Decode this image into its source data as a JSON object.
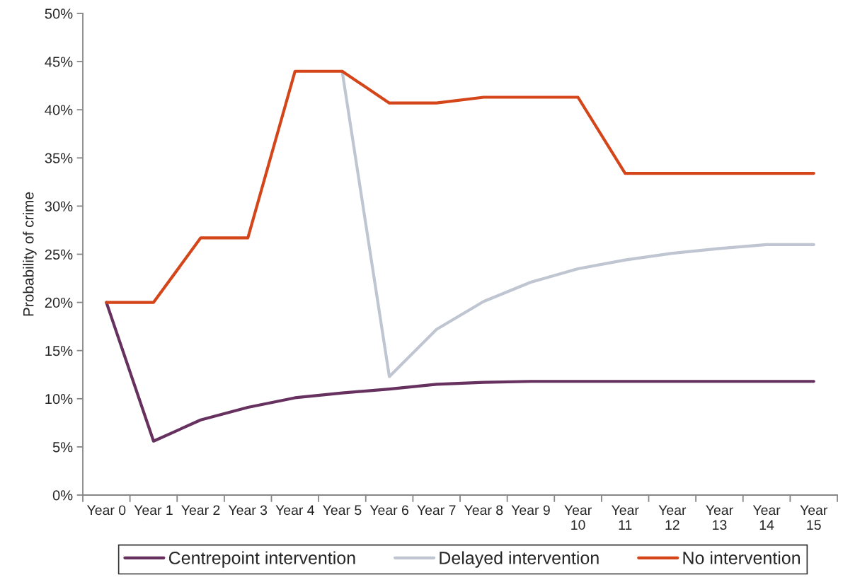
{
  "chart_data": {
    "type": "line",
    "ylabel": "Probability of crime",
    "categories": [
      "Year 0",
      "Year 1",
      "Year 2",
      "Year 3",
      "Year 4",
      "Year 5",
      "Year 6",
      "Year 7",
      "Year 8",
      "Year 9",
      "Year 10",
      "Year 11",
      "Year 12",
      "Year 13",
      "Year 14",
      "Year 15"
    ],
    "series": [
      {
        "name": "Centrepoint intervention",
        "color": "#66305f",
        "values": [
          20,
          5.6,
          7.8,
          9.1,
          10.1,
          10.6,
          11.0,
          11.5,
          11.7,
          11.8,
          11.8,
          11.8,
          11.8,
          11.8,
          11.8,
          11.8
        ]
      },
      {
        "name": "Delayed intervention",
        "color": "#bfc5d1",
        "values": [
          null,
          null,
          null,
          null,
          null,
          44,
          12.3,
          17.2,
          20.1,
          22.1,
          23.5,
          24.4,
          25.1,
          25.6,
          26.0,
          26.0
        ]
      },
      {
        "name": "No intervention",
        "color": "#d4461a",
        "values": [
          20,
          20,
          26.7,
          26.7,
          44,
          44,
          40.7,
          40.7,
          41.3,
          41.3,
          41.3,
          33.4,
          33.4,
          33.4,
          33.4,
          33.4
        ]
      }
    ],
    "ylim": [
      0,
      50
    ],
    "yticks": [
      {
        "value": 0,
        "label": "0%"
      },
      {
        "value": 5,
        "label": "5%"
      },
      {
        "value": 10,
        "label": "10%"
      },
      {
        "value": 15,
        "label": "15%"
      },
      {
        "value": 20,
        "label": "20%"
      },
      {
        "value": 25,
        "label": "25%"
      },
      {
        "value": 30,
        "label": "30%"
      },
      {
        "value": 35,
        "label": "35%"
      },
      {
        "value": 40,
        "label": "40%"
      },
      {
        "value": 45,
        "label": "45%"
      },
      {
        "value": 50,
        "label": "50%"
      }
    ],
    "legend": "bottom",
    "marker": "none",
    "line_style": "solid"
  }
}
